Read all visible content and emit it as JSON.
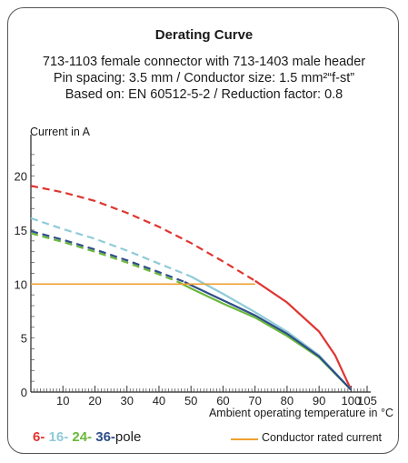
{
  "chart_data": {
    "type": "line",
    "title": "Derating Curve",
    "subtitle_lines": [
      "713-1103 female connector with 713-1403 male header",
      "Pin spacing: 3.5 mm / Conductor size: 1.5 mm²“f-st”",
      "Based on: EN 60512-5-2 / Reduction factor: 0.8"
    ],
    "ylabel": "Current in A",
    "xlabel": "Ambient operating temperature in °C",
    "xlim": [
      0,
      105
    ],
    "ylim": [
      0,
      23
    ],
    "x_ticks": [
      10,
      20,
      30,
      40,
      50,
      60,
      70,
      80,
      90,
      100,
      105
    ],
    "y_ticks": [
      0,
      5,
      10,
      15,
      20
    ],
    "grid": false,
    "series": [
      {
        "name": "6",
        "color": "#e03530",
        "dashed": [
          [
            0,
            19.1
          ],
          [
            10,
            18.5
          ],
          [
            20,
            17.7
          ],
          [
            30,
            16.6
          ],
          [
            40,
            15.3
          ],
          [
            50,
            13.8
          ],
          [
            60,
            12.1
          ],
          [
            70,
            10.3
          ]
        ],
        "solid": [
          [
            70,
            10.3
          ],
          [
            80,
            8.3
          ],
          [
            90,
            5.6
          ],
          [
            95,
            3.4
          ],
          [
            100,
            0.2
          ]
        ]
      },
      {
        "name": "16",
        "color": "#8fcbd8",
        "dashed": [
          [
            0,
            16.1
          ],
          [
            10,
            15.1
          ],
          [
            20,
            14.2
          ],
          [
            30,
            13.1
          ],
          [
            40,
            11.9
          ],
          [
            50,
            10.7
          ]
        ],
        "solid": [
          [
            50,
            10.7
          ],
          [
            60,
            9.1
          ],
          [
            70,
            7.4
          ],
          [
            80,
            5.6
          ],
          [
            90,
            3.4
          ],
          [
            100,
            0.2
          ]
        ]
      },
      {
        "name": "24",
        "color": "#6ab83a",
        "dashed": [
          [
            0,
            14.7
          ],
          [
            10,
            13.9
          ],
          [
            20,
            13.0
          ],
          [
            30,
            12.0
          ],
          [
            40,
            10.9
          ],
          [
            46,
            10.2
          ]
        ],
        "solid": [
          [
            46,
            10.2
          ],
          [
            50,
            9.6
          ],
          [
            60,
            8.2
          ],
          [
            70,
            6.9
          ],
          [
            80,
            5.2
          ],
          [
            90,
            3.2
          ],
          [
            100,
            0.2
          ]
        ]
      },
      {
        "name": "36",
        "color": "#2f4d8a",
        "dashed": [
          [
            0,
            14.9
          ],
          [
            10,
            14.1
          ],
          [
            20,
            13.2
          ],
          [
            30,
            12.2
          ],
          [
            40,
            11.1
          ],
          [
            48,
            10.2
          ]
        ],
        "solid": [
          [
            48,
            10.2
          ],
          [
            50,
            9.9
          ],
          [
            60,
            8.5
          ],
          [
            70,
            7.1
          ],
          [
            80,
            5.4
          ],
          [
            90,
            3.3
          ],
          [
            100,
            0.2
          ]
        ]
      },
      {
        "name": "Conductor rated current",
        "color": "#f0a030",
        "solid": [
          [
            0,
            10
          ],
          [
            70,
            10
          ]
        ]
      }
    ]
  },
  "legend": {
    "pole_items": [
      {
        "text": "6-",
        "color": "#e03530"
      },
      {
        "text": "16-",
        "color": "#8fcbd8"
      },
      {
        "text": "24-",
        "color": "#6ab83a"
      },
      {
        "text": "36-",
        "color": "#2f4d8a"
      }
    ],
    "pole_suffix": "pole",
    "conductor_label": "Conductor rated current"
  }
}
